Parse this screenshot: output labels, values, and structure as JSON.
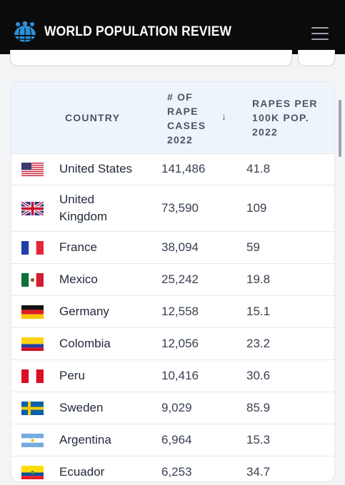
{
  "header": {
    "brand": "WORLD POPULATION REVIEW",
    "logo_icon": "globe-people-icon",
    "menu_icon": "hamburger-menu-icon"
  },
  "table": {
    "columns": {
      "country": "COUNTRY",
      "cases_lines": [
        "# OF",
        "RAPE",
        "CASES",
        "2022"
      ],
      "sort_arrow": "↓",
      "rate_lines": [
        "RAPES PER",
        "100K POP.",
        "2022"
      ]
    },
    "rows": [
      {
        "flag": "us",
        "country_lines": [
          "United States"
        ],
        "cases": "141,486",
        "rate": "41.8"
      },
      {
        "flag": "uk",
        "country_lines": [
          "United",
          "Kingdom"
        ],
        "cases": "73,590",
        "rate": "109"
      },
      {
        "flag": "fr",
        "country_lines": [
          "France"
        ],
        "cases": "38,094",
        "rate": "59"
      },
      {
        "flag": "mx",
        "country_lines": [
          "Mexico"
        ],
        "cases": "25,242",
        "rate": "19.8"
      },
      {
        "flag": "de",
        "country_lines": [
          "Germany"
        ],
        "cases": "12,558",
        "rate": "15.1"
      },
      {
        "flag": "co",
        "country_lines": [
          "Colombia"
        ],
        "cases": "12,056",
        "rate": "23.2"
      },
      {
        "flag": "pe",
        "country_lines": [
          "Peru"
        ],
        "cases": "10,416",
        "rate": "30.6"
      },
      {
        "flag": "se",
        "country_lines": [
          "Sweden"
        ],
        "cases": "9,029",
        "rate": "85.9"
      },
      {
        "flag": "ar",
        "country_lines": [
          "Argentina"
        ],
        "cases": "6,964",
        "rate": "15.3"
      },
      {
        "flag": "ec",
        "country_lines": [
          "Ecuador"
        ],
        "cases": "6,253",
        "rate": "34.7"
      }
    ]
  },
  "colors": {
    "header_bg": "#0b0b0c",
    "thead_bg": "#eef4fb",
    "text": "#1f2937"
  }
}
